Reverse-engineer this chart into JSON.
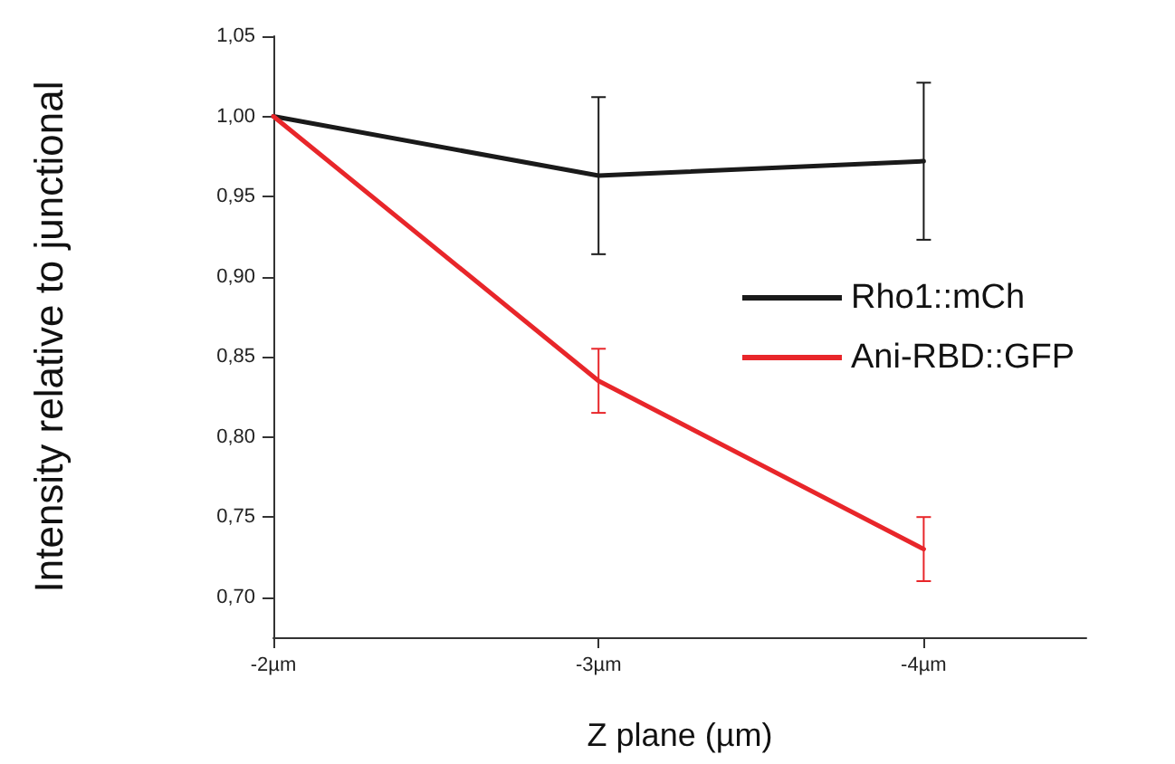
{
  "chart_data": {
    "type": "line",
    "xlabel": "Z plane (µm)",
    "ylabel": "Intensity relative to junctional",
    "x": [
      -2,
      -3,
      -4
    ],
    "xlim": [
      -2,
      -4.5
    ],
    "xticks": [
      {
        "value": -2,
        "label": "-2µm"
      },
      {
        "value": -3,
        "label": "-3µm"
      },
      {
        "value": -4,
        "label": "-4µm"
      }
    ],
    "ylim": [
      0.675,
      1.05
    ],
    "yticks": [
      {
        "value": 0.7,
        "label": "0,70"
      },
      {
        "value": 0.75,
        "label": "0,75"
      },
      {
        "value": 0.8,
        "label": "0,80"
      },
      {
        "value": 0.85,
        "label": "0,85"
      },
      {
        "value": 0.9,
        "label": "0,90"
      },
      {
        "value": 0.95,
        "label": "0,95"
      },
      {
        "value": 1.0,
        "label": "1,00"
      },
      {
        "value": 1.05,
        "label": "1,05"
      }
    ],
    "series": [
      {
        "name": "Rho1::mCh",
        "color": "#1a1a1a",
        "values": [
          1.0,
          0.963,
          0.972
        ],
        "errors": [
          null,
          0.049,
          0.049
        ]
      },
      {
        "name": "Ani-RBD::GFP",
        "color": "#e8262a",
        "values": [
          1.0,
          0.835,
          0.73
        ],
        "errors": [
          null,
          0.02,
          0.02
        ]
      }
    ],
    "legend": "right",
    "grid": false,
    "marker": "none",
    "line_style": "solid"
  }
}
